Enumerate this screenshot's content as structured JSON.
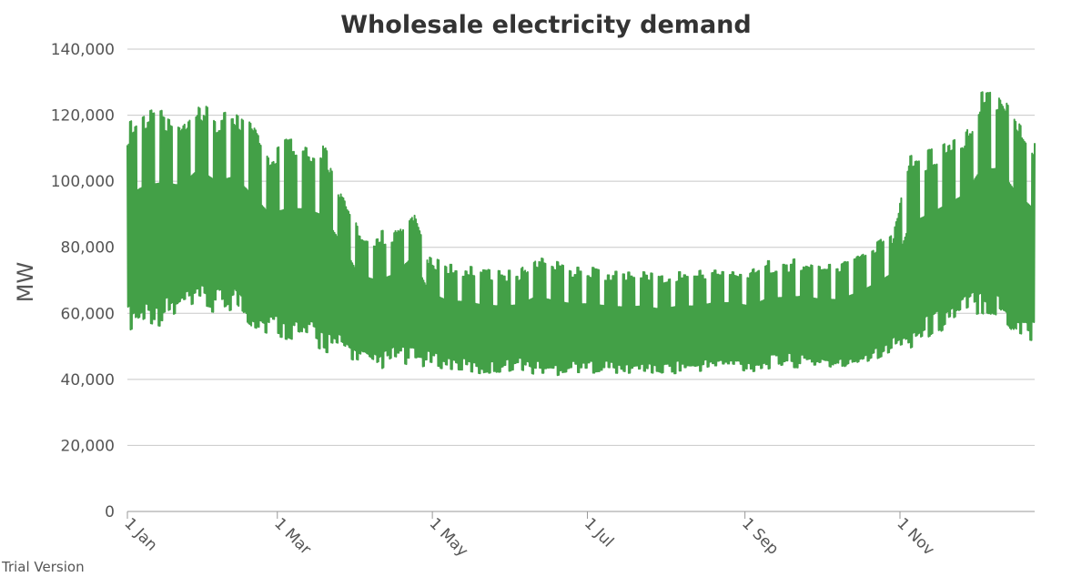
{
  "chart_data": {
    "type": "line",
    "title": "Wholesale electricity demand",
    "ylabel": "MW",
    "xlabel": "",
    "ylim": [
      0,
      140000
    ],
    "yticks": [
      "0",
      "20,000",
      "40,000",
      "60,000",
      "80,000",
      "100,000",
      "120,000",
      "140,000"
    ],
    "ytick_values": [
      0,
      20000,
      40000,
      60000,
      80000,
      100000,
      120000,
      140000
    ],
    "xticks": [
      "1 Jan",
      "1 Mar",
      "1 May",
      "1 Jul",
      "1 Sep",
      "1 Nov"
    ],
    "xtick_days": [
      1,
      60,
      121,
      182,
      244,
      305
    ],
    "xlim_days": [
      1,
      358
    ],
    "grid": true,
    "legend": "none",
    "color": "#43a047",
    "series": [
      {
        "resolution": "daily minimum and maximum demand (approx.)",
        "days": [
          1,
          8,
          15,
          22,
          29,
          36,
          43,
          50,
          57,
          64,
          71,
          78,
          85,
          92,
          99,
          106,
          113,
          120,
          127,
          134,
          141,
          148,
          155,
          162,
          169,
          176,
          183,
          190,
          197,
          204,
          211,
          218,
          225,
          232,
          239,
          246,
          253,
          260,
          267,
          274,
          281,
          288,
          295,
          302,
          309,
          316,
          323,
          330,
          337,
          344,
          351,
          358
        ],
        "max_mw": [
          118000,
          121000,
          123000,
          120000,
          127000,
          122000,
          123000,
          118000,
          110000,
          113000,
          114000,
          112000,
          100000,
          86000,
          85000,
          86000,
          95000,
          78000,
          75000,
          75000,
          74000,
          73000,
          73000,
          78000,
          76000,
          74000,
          74000,
          73000,
          73000,
          73000,
          72000,
          73000,
          73000,
          74000,
          74000,
          73000,
          76000,
          76000,
          77000,
          75000,
          76000,
          78000,
          81000,
          85000,
          108000,
          110000,
          113000,
          116000,
          127000,
          129000,
          120000,
          113000
        ],
        "min_mw": [
          54000,
          57000,
          56000,
          59000,
          60000,
          59000,
          61000,
          55000,
          53000,
          52000,
          50000,
          48000,
          47000,
          45000,
          42000,
          45000,
          43000,
          44000,
          43000,
          42000,
          41000,
          42000,
          43000,
          41000,
          41000,
          42000,
          42000,
          42000,
          41000,
          42000,
          41000,
          42000,
          42000,
          43000,
          43000,
          42000,
          43000,
          44000,
          43000,
          44000,
          42000,
          44000,
          46000,
          48000,
          49000,
          52000,
          55000,
          58000,
          60000,
          57000,
          52000,
          51000
        ]
      }
    ]
  },
  "footer": {
    "watermark": "Trial Version"
  }
}
